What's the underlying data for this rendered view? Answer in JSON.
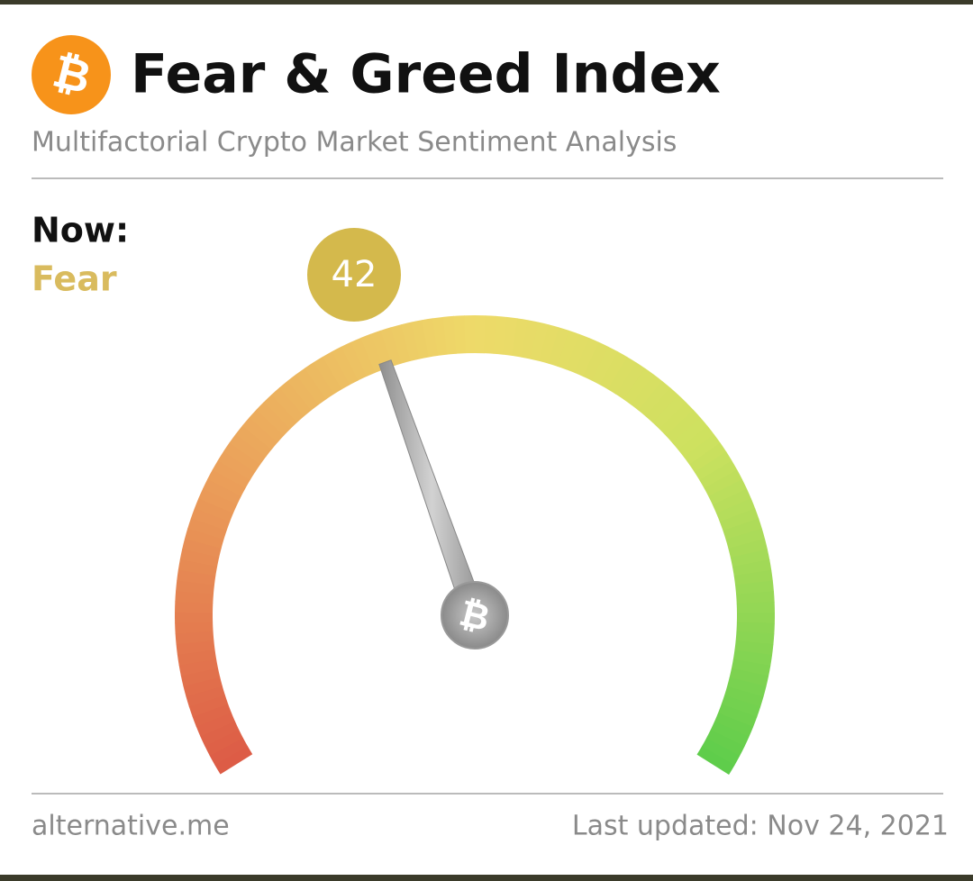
{
  "chart_data": {
    "type": "gauge",
    "title": "Fear & Greed Index",
    "subtitle": "Multifactorial Crypto Market Sentiment Analysis",
    "now_label": "Now:",
    "classification": "Fear",
    "value": 42,
    "ylim": [
      0,
      100
    ],
    "source": "alternative.me",
    "updated": "Last updated: Nov 24, 2021"
  }
}
